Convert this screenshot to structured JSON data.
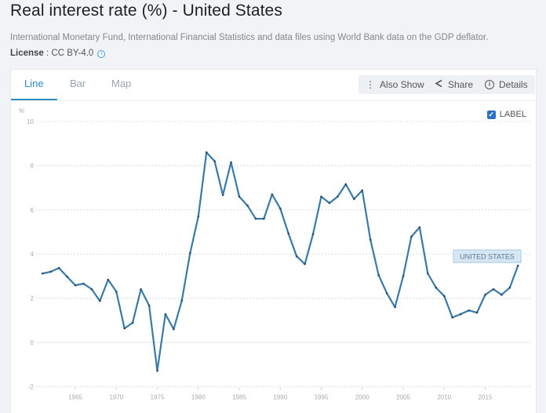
{
  "header": {
    "title": "Real interest rate (%) - United States",
    "source": "International Monetary Fund, International Financial Statistics and data files using World Bank data on the GDP deflator.",
    "license_label": "License",
    "license_sep": " : ",
    "license_value": "CC BY-4.0",
    "info_icon": "info-circle-icon"
  },
  "tabs": [
    {
      "label": "Line",
      "active": true
    },
    {
      "label": "Bar",
      "active": false
    },
    {
      "label": "Map",
      "active": false
    }
  ],
  "toolbar": {
    "also_show": {
      "label": "Also Show",
      "icon": "vertical-dots-icon"
    },
    "share": {
      "label": "Share",
      "icon": "share-icon"
    },
    "details": {
      "label": "Details",
      "icon": "info-circle-icon"
    }
  },
  "label_toggle": {
    "label": "LABEL",
    "checked": true
  },
  "colors": {
    "accent": "#2f8cc7",
    "line": "#3a7aa8",
    "label_bg": "#d7e6f3",
    "label_border": "#a9c7e0"
  },
  "chart_data": {
    "type": "line",
    "title": "Real interest rate (%) - United States",
    "xlabel": "",
    "ylabel": "%",
    "xlim": [
      1961,
      2019
    ],
    "ylim": [
      -2,
      10
    ],
    "yticks": [
      -2,
      0,
      2,
      4,
      6,
      8,
      10
    ],
    "xticks": [
      1965,
      1970,
      1975,
      1980,
      1985,
      1990,
      1995,
      2000,
      2005,
      2010,
      2015
    ],
    "grid": true,
    "legend": "inline-label-right",
    "series": [
      {
        "name": "UNITED STATES",
        "x": [
          1961,
          1962,
          1963,
          1964,
          1965,
          1966,
          1967,
          1968,
          1969,
          1970,
          1971,
          1972,
          1973,
          1974,
          1975,
          1976,
          1977,
          1978,
          1979,
          1980,
          1981,
          1982,
          1983,
          1984,
          1985,
          1986,
          1987,
          1988,
          1989,
          1990,
          1991,
          1992,
          1993,
          1994,
          1995,
          1996,
          1997,
          1998,
          1999,
          2000,
          2001,
          2002,
          2003,
          2004,
          2005,
          2006,
          2007,
          2008,
          2009,
          2010,
          2011,
          2012,
          2013,
          2014,
          2015,
          2016,
          2017,
          2018,
          2019
        ],
        "values": [
          3.12,
          3.2,
          3.37,
          2.98,
          2.59,
          2.66,
          2.41,
          1.88,
          2.84,
          2.3,
          0.64,
          0.89,
          2.41,
          1.67,
          -1.28,
          1.28,
          0.6,
          1.9,
          4.04,
          5.7,
          8.6,
          8.2,
          6.67,
          8.15,
          6.6,
          6.2,
          5.6,
          5.6,
          6.7,
          6.06,
          4.93,
          3.9,
          3.55,
          4.9,
          6.6,
          6.31,
          6.6,
          7.16,
          6.49,
          6.88,
          4.65,
          3.05,
          2.23,
          1.6,
          3.0,
          4.79,
          5.21,
          3.12,
          2.48,
          2.1,
          1.13,
          1.28,
          1.45,
          1.35,
          2.16,
          2.41,
          2.16,
          2.48,
          3.48
        ]
      }
    ]
  }
}
